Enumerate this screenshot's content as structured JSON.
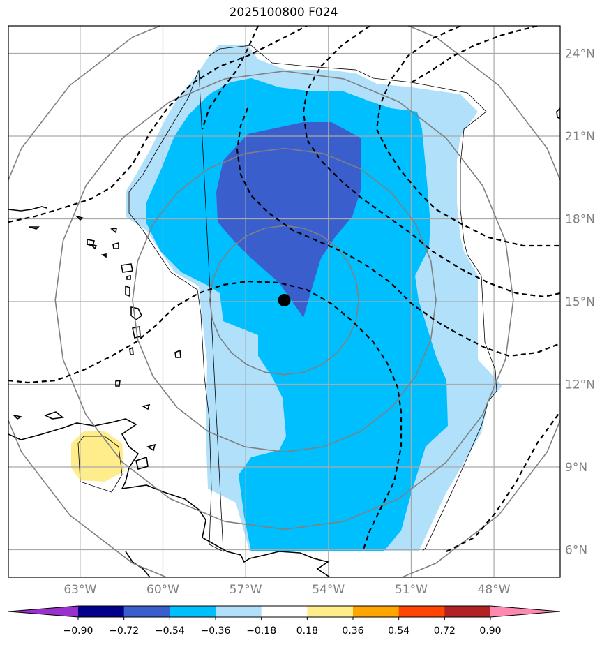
{
  "title": "2025100800 F024",
  "map": {
    "lon_range": [
      -65.6,
      -45.6
    ],
    "lat_range": [
      5.0,
      25.0
    ],
    "lon_ticks": [
      {
        "value": -63,
        "label": "63°W"
      },
      {
        "value": -60,
        "label": "60°W"
      },
      {
        "value": -57,
        "label": "57°W"
      },
      {
        "value": -54,
        "label": "54°W"
      },
      {
        "value": -51,
        "label": "51°W"
      },
      {
        "value": -48,
        "label": "48°W"
      }
    ],
    "lat_ticks": [
      {
        "value": 24,
        "label": "24°N"
      },
      {
        "value": 21,
        "label": "21°N"
      },
      {
        "value": 18,
        "label": "18°N"
      },
      {
        "value": 15,
        "label": "15°N"
      },
      {
        "value": 12,
        "label": "12°N"
      },
      {
        "value": 9,
        "label": "9°N"
      },
      {
        "value": 6,
        "label": "6°N"
      }
    ],
    "grid": true,
    "storm_center": {
      "lon": -55.6,
      "lat": 15.05
    },
    "range_rings_deg": [
      2.7,
      5.5,
      8.3,
      11.0
    ]
  },
  "colorbar": {
    "levels": [
      "−0.90",
      "−0.72",
      "−0.54",
      "−0.36",
      "−0.18",
      "0.18",
      "0.36",
      "0.54",
      "0.72",
      "0.90"
    ],
    "colors": [
      "#9932cc",
      "#00008b",
      "#3a5fcd",
      "#00bfff",
      "#b0e0fa",
      "#ffffff",
      "#ffec8b",
      "#ffa500",
      "#ff4500",
      "#b22222",
      "#ff88b0"
    ],
    "extend": "both"
  }
}
